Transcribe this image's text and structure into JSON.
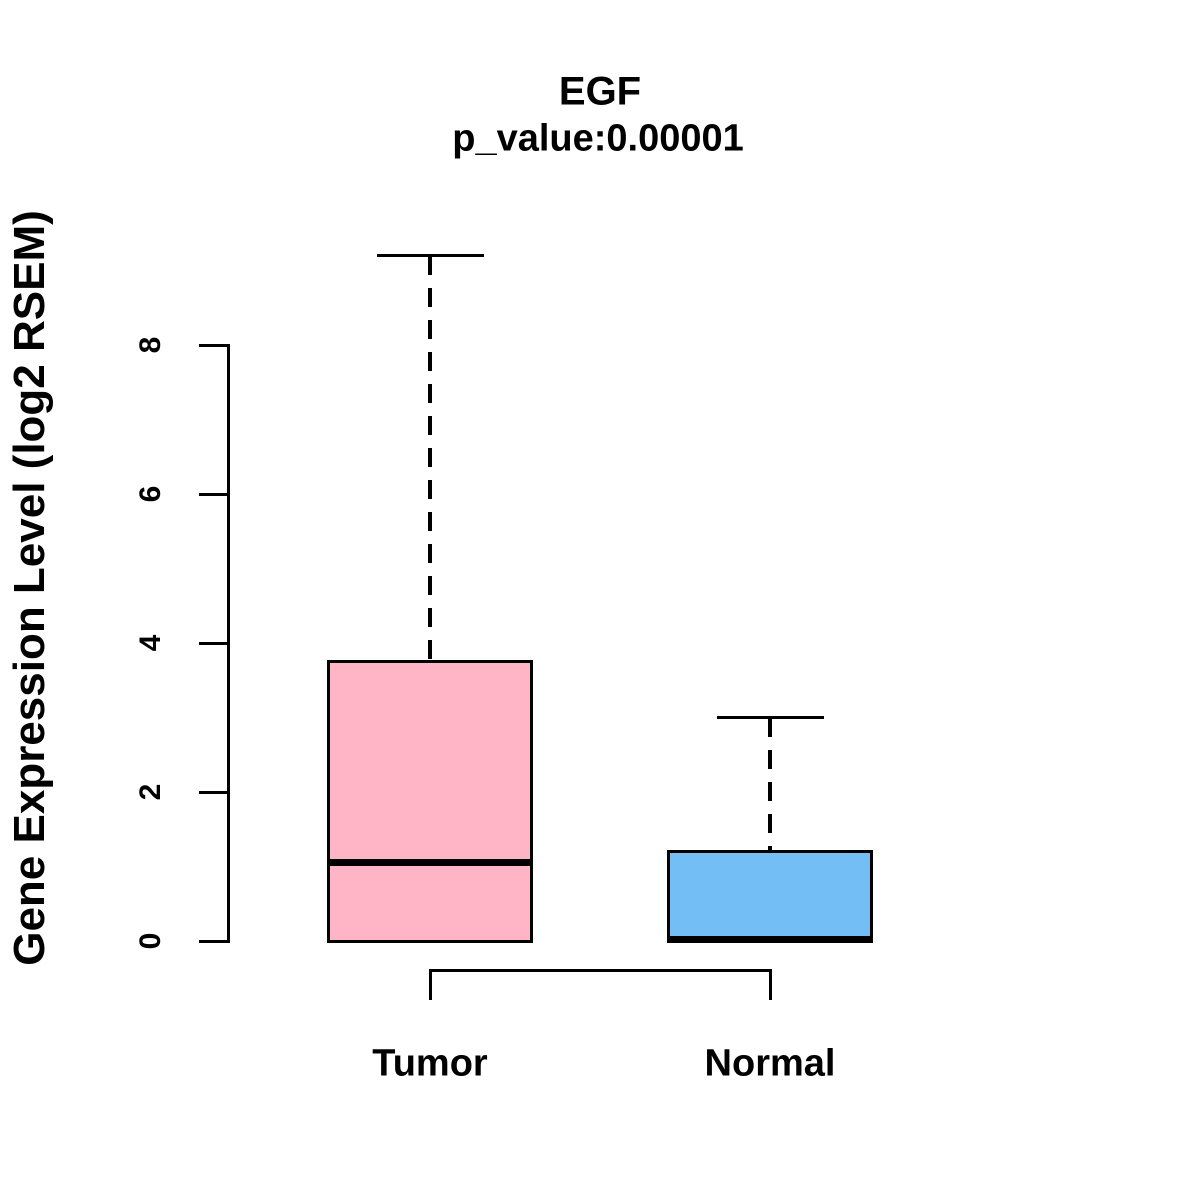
{
  "chart_data": {
    "type": "boxplot",
    "title": "EGF",
    "subtitle": "p_value:0.00001",
    "p_value": "0.00001",
    "gene": "EGF",
    "ylabel": "Gene Expression Level (log2 RSEM)",
    "xlabel": "",
    "yticks": [
      0,
      2,
      4,
      6,
      8
    ],
    "ylim": [
      0,
      9.3
    ],
    "grid": false,
    "legend": "none",
    "categories": [
      "Tumor",
      "Normal"
    ],
    "series": [
      {
        "name": "Tumor",
        "color": "#FFB5C5",
        "whisker_low": 0,
        "q1": 0,
        "median": 1.05,
        "q3": 3.75,
        "whisker_high": 9.2
      },
      {
        "name": "Normal",
        "color": "#74BEF6",
        "whisker_low": 0,
        "q1": 0,
        "median": 0.02,
        "q3": 1.2,
        "whisker_high": 3.0
      }
    ],
    "box_border_color": "#000000",
    "background_color": "#FFFFFF"
  }
}
